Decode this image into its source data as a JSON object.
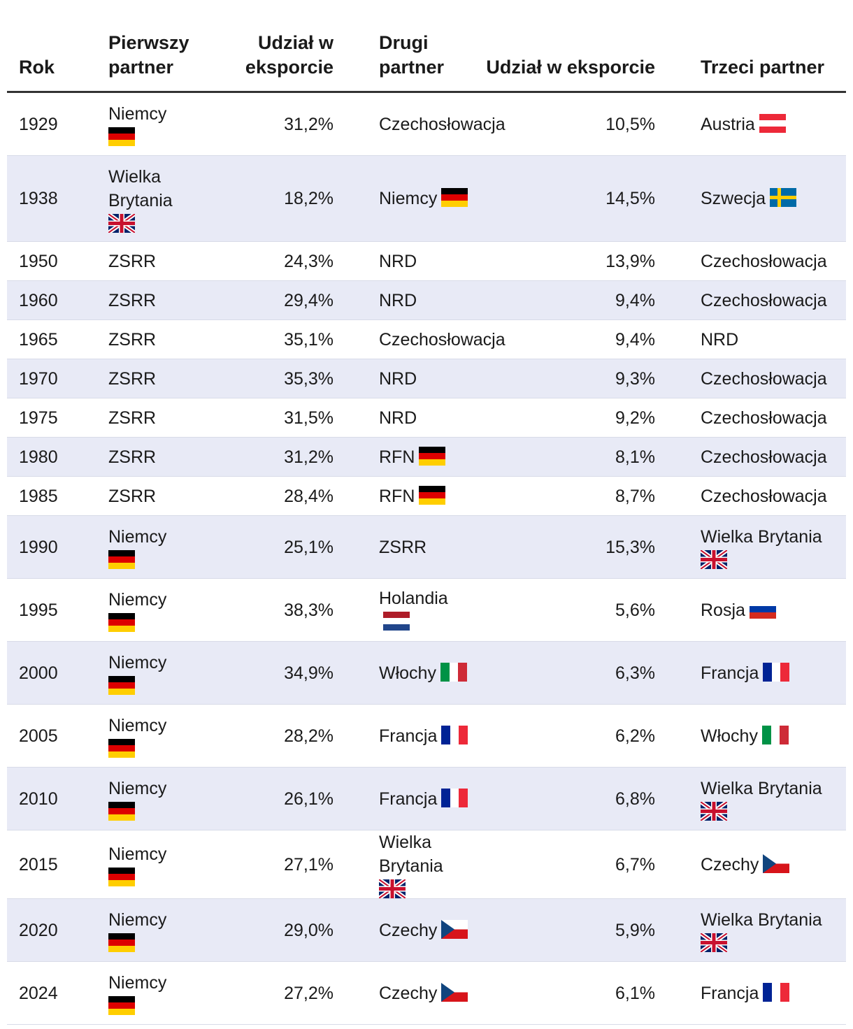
{
  "headers": {
    "year": "Rok",
    "first_partner": "Pierwszy partner",
    "first_share": "Udział w eksporcie",
    "second_partner": "Drugi partner",
    "second_share": "Udział w eksporcie",
    "third_partner": "Trzeci partner"
  },
  "flag_colors": {
    "germany": [
      "#000000",
      "#dd0000",
      "#ffce00"
    ],
    "uk": [
      "#012169",
      "#ffffff",
      "#c8102e"
    ],
    "austria": [
      "#ed2939",
      "#ffffff",
      "#ed2939"
    ],
    "sweden": [
      "#006aa7",
      "#fecc00"
    ],
    "netherlands": [
      "#ae1c28",
      "#ffffff",
      "#21468b"
    ],
    "russia": [
      "#ffffff",
      "#0039a6",
      "#d52b1e"
    ],
    "italy": [
      "#009246",
      "#ffffff",
      "#ce2b37"
    ],
    "france": [
      "#002395",
      "#ffffff",
      "#ed2939"
    ],
    "czechia": [
      "#ffffff",
      "#d7141a",
      "#11457e"
    ]
  },
  "rows": [
    {
      "year": "1929",
      "p1": "Niemcy",
      "p1_flag": "germany",
      "s1": "31,2%",
      "p2": "Czechosłowacja",
      "p2_flag": "",
      "s2": "10,5%",
      "p3": "Austria",
      "p3_flag": "austria"
    },
    {
      "year": "1938",
      "p1": "Wielka Brytania",
      "p1_flag": "uk",
      "s1": "18,2%",
      "p2": "Niemcy",
      "p2_flag": "germany",
      "s2": "14,5%",
      "p3": "Szwecja",
      "p3_flag": "sweden"
    },
    {
      "year": "1950",
      "p1": "ZSRR",
      "p1_flag": "",
      "s1": "24,3%",
      "p2": "NRD",
      "p2_flag": "",
      "s2": "13,9%",
      "p3": "Czechosłowacja",
      "p3_flag": ""
    },
    {
      "year": "1960",
      "p1": "ZSRR",
      "p1_flag": "",
      "s1": "29,4%",
      "p2": "NRD",
      "p2_flag": "",
      "s2": "9,4%",
      "p3": "Czechosłowacja",
      "p3_flag": ""
    },
    {
      "year": "1965",
      "p1": "ZSRR",
      "p1_flag": "",
      "s1": "35,1%",
      "p2": "Czechosłowacja",
      "p2_flag": "",
      "s2": "9,4%",
      "p3": "NRD",
      "p3_flag": ""
    },
    {
      "year": "1970",
      "p1": "ZSRR",
      "p1_flag": "",
      "s1": "35,3%",
      "p2": "NRD",
      "p2_flag": "",
      "s2": "9,3%",
      "p3": "Czechosłowacja",
      "p3_flag": ""
    },
    {
      "year": "1975",
      "p1": "ZSRR",
      "p1_flag": "",
      "s1": "31,5%",
      "p2": "NRD",
      "p2_flag": "",
      "s2": "9,2%",
      "p3": "Czechosłowacja",
      "p3_flag": ""
    },
    {
      "year": "1980",
      "p1": "ZSRR",
      "p1_flag": "",
      "s1": "31,2%",
      "p2": "RFN",
      "p2_flag": "germany",
      "s2": "8,1%",
      "p3": "Czechosłowacja",
      "p3_flag": ""
    },
    {
      "year": "1985",
      "p1": "ZSRR",
      "p1_flag": "",
      "s1": "28,4%",
      "p2": "RFN",
      "p2_flag": "germany",
      "s2": "8,7%",
      "p3": "Czechosłowacja",
      "p3_flag": ""
    },
    {
      "year": "1990",
      "p1": "Niemcy",
      "p1_flag": "germany",
      "s1": "25,1%",
      "p2": "ZSRR",
      "p2_flag": "",
      "s2": "15,3%",
      "p3": "Wielka Brytania",
      "p3_flag": "uk"
    },
    {
      "year": "1995",
      "p1": "Niemcy",
      "p1_flag": "germany",
      "s1": "38,3%",
      "p2": "Holandia",
      "p2_flag": "netherlands",
      "s2": "5,6%",
      "p3": "Rosja",
      "p3_flag": "russia"
    },
    {
      "year": "2000",
      "p1": "Niemcy",
      "p1_flag": "germany",
      "s1": "34,9%",
      "p2": "Włochy",
      "p2_flag": "italy",
      "s2": "6,3%",
      "p3": "Francja",
      "p3_flag": "france"
    },
    {
      "year": "2005",
      "p1": "Niemcy",
      "p1_flag": "germany",
      "s1": "28,2%",
      "p2": "Francja",
      "p2_flag": "france",
      "s2": "6,2%",
      "p3": "Włochy",
      "p3_flag": "italy"
    },
    {
      "year": "2010",
      "p1": "Niemcy",
      "p1_flag": "germany",
      "s1": "26,1%",
      "p2": "Francja",
      "p2_flag": "france",
      "s2": "6,8%",
      "p3": "Wielka Brytania",
      "p3_flag": "uk"
    },
    {
      "year": "2015",
      "p1": "Niemcy",
      "p1_flag": "germany",
      "s1": "27,1%",
      "p2": "Wielka Brytania",
      "p2_flag": "uk",
      "s2": "6,7%",
      "p3": "Czechy",
      "p3_flag": "czechia"
    },
    {
      "year": "2020",
      "p1": "Niemcy",
      "p1_flag": "germany",
      "s1": "29,0%",
      "p2": "Czechy",
      "p2_flag": "czechia",
      "s2": "5,9%",
      "p3": "Wielka Brytania",
      "p3_flag": "uk"
    },
    {
      "year": "2024",
      "p1": "Niemcy",
      "p1_flag": "germany",
      "s1": "27,2%",
      "p2": "Czechy",
      "p2_flag": "czechia",
      "s2": "6,1%",
      "p3": "Francja",
      "p3_flag": "france"
    }
  ]
}
